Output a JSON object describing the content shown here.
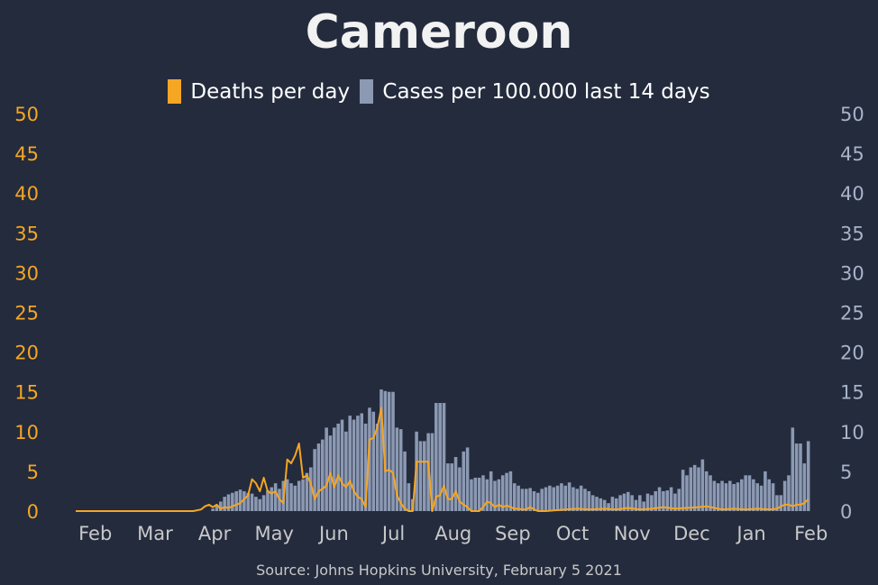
{
  "title": "Cameroon",
  "source": "Source: Johns Hopkins University, February 5 2021",
  "colors": {
    "background": "#232b3d",
    "deaths": "#f5a623",
    "cases": "#8c99b3",
    "left_axis": "#f5a623",
    "right_axis": "#a9b3c8",
    "x_axis": "#c8c8c8"
  },
  "legend": {
    "deaths_label": "Deaths per day",
    "cases_label": "Cases per 100.000 last 14 days",
    "placement": "top-center"
  },
  "chart_data": {
    "type": "bar+line",
    "title": "Cameroon",
    "x_ticks": [
      "Feb",
      "Mar",
      "Apr",
      "May",
      "Jun",
      "Jul",
      "Aug",
      "Sep",
      "Oct",
      "Nov",
      "Dec",
      "Jan",
      "Feb"
    ],
    "y_left": {
      "ticks": [
        0,
        5,
        10,
        15,
        20,
        25,
        30,
        35,
        40,
        45,
        50
      ],
      "range": [
        0,
        50
      ]
    },
    "y_right": {
      "ticks": [
        0,
        5,
        10,
        15,
        20,
        25,
        30,
        35,
        40,
        45,
        50
      ],
      "range": [
        0,
        50
      ]
    },
    "grid": false,
    "x_range_days": [
      0,
      370
    ],
    "series": [
      {
        "name": "Cases per 100.000 last 14 days",
        "kind": "bar",
        "axis": "right",
        "points": [
          [
            65,
            0
          ],
          [
            70,
            0.3
          ],
          [
            72,
            0.8
          ],
          [
            74,
            1.2
          ],
          [
            76,
            1.8
          ],
          [
            78,
            2.1
          ],
          [
            80,
            2.3
          ],
          [
            82,
            2.5
          ],
          [
            84,
            2.7
          ],
          [
            86,
            2.5
          ],
          [
            88,
            2.3
          ],
          [
            90,
            2.2
          ],
          [
            92,
            1.8
          ],
          [
            94,
            1.5
          ],
          [
            96,
            2.0
          ],
          [
            98,
            2.6
          ],
          [
            100,
            3.0
          ],
          [
            102,
            3.5
          ],
          [
            104,
            2.8
          ],
          [
            106,
            3.8
          ],
          [
            108,
            4.0
          ],
          [
            110,
            3.5
          ],
          [
            112,
            3.2
          ],
          [
            114,
            3.8
          ],
          [
            116,
            4.0
          ],
          [
            118,
            4.8
          ],
          [
            120,
            5.5
          ],
          [
            122,
            7.8
          ],
          [
            124,
            8.5
          ],
          [
            126,
            9.0
          ],
          [
            128,
            10.5
          ],
          [
            130,
            9.5
          ],
          [
            132,
            10.5
          ],
          [
            134,
            11.0
          ],
          [
            136,
            11.5
          ],
          [
            138,
            10.0
          ],
          [
            140,
            12.0
          ],
          [
            142,
            11.5
          ],
          [
            144,
            12.0
          ],
          [
            146,
            12.3
          ],
          [
            148,
            11.0
          ],
          [
            150,
            13.0
          ],
          [
            152,
            12.5
          ],
          [
            154,
            11.0
          ],
          [
            156,
            15.3
          ],
          [
            158,
            15.1
          ],
          [
            160,
            15.0
          ],
          [
            162,
            15.0
          ],
          [
            164,
            10.5
          ],
          [
            166,
            10.3
          ],
          [
            168,
            7.5
          ],
          [
            170,
            3.5
          ],
          [
            172,
            1.5
          ],
          [
            174,
            10.0
          ],
          [
            176,
            8.8
          ],
          [
            178,
            8.8
          ],
          [
            180,
            9.8
          ],
          [
            182,
            9.8
          ],
          [
            184,
            13.6
          ],
          [
            186,
            13.6
          ],
          [
            188,
            13.6
          ],
          [
            190,
            6.0
          ],
          [
            192,
            6.0
          ],
          [
            194,
            6.8
          ],
          [
            196,
            5.5
          ],
          [
            198,
            7.5
          ],
          [
            200,
            8.0
          ],
          [
            202,
            4.0
          ],
          [
            204,
            4.2
          ],
          [
            206,
            4.2
          ],
          [
            208,
            4.5
          ],
          [
            210,
            4.0
          ],
          [
            212,
            5.0
          ],
          [
            214,
            3.8
          ],
          [
            216,
            4.0
          ],
          [
            218,
            4.5
          ],
          [
            220,
            4.8
          ],
          [
            222,
            5.0
          ],
          [
            224,
            3.5
          ],
          [
            226,
            3.2
          ],
          [
            228,
            2.8
          ],
          [
            230,
            2.8
          ],
          [
            232,
            2.9
          ],
          [
            234,
            2.5
          ],
          [
            236,
            2.3
          ],
          [
            238,
            2.8
          ],
          [
            240,
            3.0
          ],
          [
            242,
            3.2
          ],
          [
            244,
            3.0
          ],
          [
            246,
            3.2
          ],
          [
            248,
            3.5
          ],
          [
            250,
            3.2
          ],
          [
            252,
            3.6
          ],
          [
            254,
            3.0
          ],
          [
            256,
            2.8
          ],
          [
            258,
            3.2
          ],
          [
            260,
            2.8
          ],
          [
            262,
            2.5
          ],
          [
            264,
            2.0
          ],
          [
            266,
            1.8
          ],
          [
            268,
            1.6
          ],
          [
            270,
            1.4
          ],
          [
            272,
            1.0
          ],
          [
            274,
            1.8
          ],
          [
            276,
            1.6
          ],
          [
            278,
            2.0
          ],
          [
            280,
            2.2
          ],
          [
            282,
            2.4
          ],
          [
            284,
            2.0
          ],
          [
            286,
            1.4
          ],
          [
            288,
            2.0
          ],
          [
            290,
            1.2
          ],
          [
            292,
            2.2
          ],
          [
            294,
            2.0
          ],
          [
            296,
            2.5
          ],
          [
            298,
            3.0
          ],
          [
            300,
            2.5
          ],
          [
            302,
            2.6
          ],
          [
            304,
            3.0
          ],
          [
            306,
            2.2
          ],
          [
            308,
            2.8
          ],
          [
            310,
            5.2
          ],
          [
            312,
            4.5
          ],
          [
            314,
            5.5
          ],
          [
            316,
            5.8
          ],
          [
            318,
            5.5
          ],
          [
            320,
            6.5
          ],
          [
            322,
            5.0
          ],
          [
            324,
            4.5
          ],
          [
            326,
            3.8
          ],
          [
            328,
            3.5
          ],
          [
            330,
            3.8
          ],
          [
            332,
            3.5
          ],
          [
            334,
            3.8
          ],
          [
            336,
            3.4
          ],
          [
            338,
            3.6
          ],
          [
            340,
            4.0
          ],
          [
            342,
            4.5
          ],
          [
            344,
            4.5
          ],
          [
            346,
            4.0
          ],
          [
            348,
            3.5
          ],
          [
            350,
            3.2
          ],
          [
            352,
            5.0
          ],
          [
            354,
            4.0
          ],
          [
            356,
            3.5
          ],
          [
            358,
            2.0
          ],
          [
            360,
            2.0
          ],
          [
            362,
            3.8
          ],
          [
            364,
            4.5
          ],
          [
            366,
            10.5
          ],
          [
            368,
            8.5
          ],
          [
            370,
            8.5
          ],
          [
            372,
            6.0
          ],
          [
            374,
            8.8
          ]
        ]
      },
      {
        "name": "Deaths per day",
        "kind": "line",
        "axis": "left",
        "points": [
          [
            0,
            0
          ],
          [
            60,
            0
          ],
          [
            64,
            0.2
          ],
          [
            66,
            0.6
          ],
          [
            68,
            0.8
          ],
          [
            70,
            0.5
          ],
          [
            72,
            0.8
          ],
          [
            74,
            0.3
          ],
          [
            76,
            0.5
          ],
          [
            78,
            0.4
          ],
          [
            80,
            0.6
          ],
          [
            82,
            0.8
          ],
          [
            84,
            1.0
          ],
          [
            86,
            1.5
          ],
          [
            88,
            2.0
          ],
          [
            90,
            4.0
          ],
          [
            92,
            3.5
          ],
          [
            94,
            2.5
          ],
          [
            96,
            4.2
          ],
          [
            98,
            2.5
          ],
          [
            100,
            2.2
          ],
          [
            102,
            2.5
          ],
          [
            104,
            1.5
          ],
          [
            106,
            1.0
          ],
          [
            108,
            6.5
          ],
          [
            110,
            6.0
          ],
          [
            112,
            7.0
          ],
          [
            114,
            8.5
          ],
          [
            116,
            4.2
          ],
          [
            118,
            4.5
          ],
          [
            120,
            3.5
          ],
          [
            122,
            1.5
          ],
          [
            124,
            2.5
          ],
          [
            126,
            2.8
          ],
          [
            128,
            3.2
          ],
          [
            130,
            4.8
          ],
          [
            132,
            3.0
          ],
          [
            134,
            4.5
          ],
          [
            136,
            3.5
          ],
          [
            138,
            3.0
          ],
          [
            140,
            3.8
          ],
          [
            142,
            2.5
          ],
          [
            144,
            1.8
          ],
          [
            146,
            1.5
          ],
          [
            148,
            0.5
          ],
          [
            150,
            9.0
          ],
          [
            152,
            9.2
          ],
          [
            154,
            10.5
          ],
          [
            156,
            13.0
          ],
          [
            158,
            5.0
          ],
          [
            160,
            5.2
          ],
          [
            162,
            4.8
          ],
          [
            164,
            2.0
          ],
          [
            166,
            1.0
          ],
          [
            168,
            0.3
          ],
          [
            170,
            0
          ],
          [
            172,
            0
          ],
          [
            174,
            6.2
          ],
          [
            176,
            6.2
          ],
          [
            178,
            6.2
          ],
          [
            180,
            6.2
          ],
          [
            182,
            0
          ],
          [
            184,
            1.8
          ],
          [
            186,
            2.0
          ],
          [
            188,
            3.2
          ],
          [
            190,
            1.5
          ],
          [
            192,
            1.5
          ],
          [
            194,
            2.5
          ],
          [
            196,
            1.2
          ],
          [
            198,
            0.8
          ],
          [
            200,
            0.5
          ],
          [
            202,
            0
          ],
          [
            206,
            0
          ],
          [
            208,
            0.5
          ],
          [
            210,
            1.2
          ],
          [
            212,
            1.0
          ],
          [
            214,
            0.5
          ],
          [
            216,
            0.8
          ],
          [
            218,
            0.5
          ],
          [
            220,
            0.7
          ],
          [
            222,
            0.5
          ],
          [
            224,
            0.3
          ],
          [
            226,
            0.3
          ],
          [
            228,
            0.2
          ],
          [
            230,
            0.2
          ],
          [
            232,
            0.5
          ],
          [
            234,
            0.2
          ],
          [
            236,
            0
          ],
          [
            240,
            0
          ],
          [
            250,
            0.2
          ],
          [
            256,
            0.3
          ],
          [
            262,
            0.2
          ],
          [
            270,
            0.3
          ],
          [
            276,
            0.2
          ],
          [
            282,
            0.4
          ],
          [
            288,
            0.2
          ],
          [
            294,
            0.3
          ],
          [
            300,
            0.5
          ],
          [
            306,
            0.3
          ],
          [
            312,
            0.4
          ],
          [
            318,
            0.5
          ],
          [
            322,
            0.6
          ],
          [
            326,
            0.4
          ],
          [
            330,
            0.2
          ],
          [
            336,
            0.3
          ],
          [
            342,
            0.2
          ],
          [
            348,
            0.3
          ],
          [
            354,
            0.2
          ],
          [
            358,
            0.3
          ],
          [
            360,
            0.6
          ],
          [
            362,
            0.8
          ],
          [
            364,
            0.8
          ],
          [
            366,
            0.6
          ],
          [
            368,
            0.8
          ],
          [
            370,
            0.8
          ],
          [
            372,
            1.0
          ],
          [
            374,
            1.5
          ]
        ]
      }
    ]
  }
}
